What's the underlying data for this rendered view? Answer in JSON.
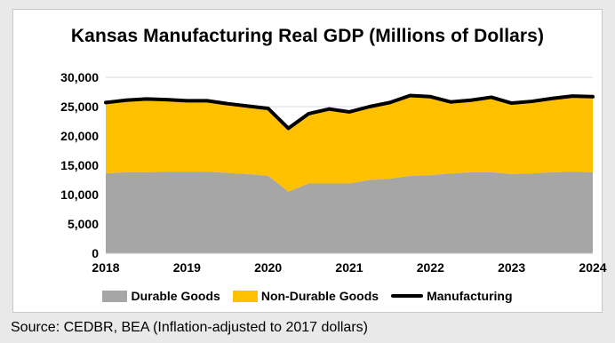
{
  "chart_data": {
    "type": "area",
    "title": "Kansas Manufacturing Real GDP (Millions of Dollars)",
    "xlabel": "",
    "ylabel": "",
    "x": [
      2018.0,
      2018.25,
      2018.5,
      2018.75,
      2019.0,
      2019.25,
      2019.5,
      2019.75,
      2020.0,
      2020.25,
      2020.5,
      2020.75,
      2021.0,
      2021.25,
      2021.5,
      2021.75,
      2022.0,
      2022.25,
      2022.5,
      2022.75,
      2023.0,
      2023.25,
      2023.5,
      2023.75,
      2024.0
    ],
    "x_ticks": [
      "2018",
      "2019",
      "2020",
      "2021",
      "2022",
      "2023",
      "2024"
    ],
    "xlim": [
      2018,
      2024
    ],
    "ylim": [
      0,
      30000
    ],
    "y_ticks": [
      "0",
      "5,000",
      "10,000",
      "15,000",
      "20,000",
      "25,000",
      "30,000"
    ],
    "grid": true,
    "legend_position": "bottom",
    "series": [
      {
        "name": "Durable Goods",
        "kind": "stacked-area",
        "color": "#a6a6a6",
        "values": [
          13600,
          13800,
          13800,
          13900,
          13900,
          13900,
          13700,
          13500,
          13200,
          10500,
          11900,
          11900,
          11900,
          12500,
          12700,
          13200,
          13300,
          13600,
          13800,
          13800,
          13500,
          13600,
          13800,
          13900,
          13800
        ]
      },
      {
        "name": "Non-Durable Goods",
        "kind": "stacked-area",
        "color": "#ffc000",
        "values": [
          12100,
          12300,
          12500,
          12300,
          12100,
          12100,
          11800,
          11600,
          11500,
          10800,
          11900,
          12700,
          12200,
          12500,
          13000,
          13700,
          13400,
          12200,
          12300,
          12800,
          12100,
          12300,
          12600,
          12900,
          12900
        ]
      },
      {
        "name": "Manufacturing",
        "kind": "line",
        "color": "#000000",
        "values": [
          25700,
          26100,
          26300,
          26200,
          26000,
          26000,
          25500,
          25100,
          24700,
          21300,
          23800,
          24600,
          24100,
          25000,
          25700,
          26900,
          26700,
          25800,
          26100,
          26600,
          25600,
          25900,
          26400,
          26800,
          26700
        ]
      }
    ]
  },
  "source_note": "Source: CEDBR, BEA (Inflation-adjusted to 2017 dollars)"
}
